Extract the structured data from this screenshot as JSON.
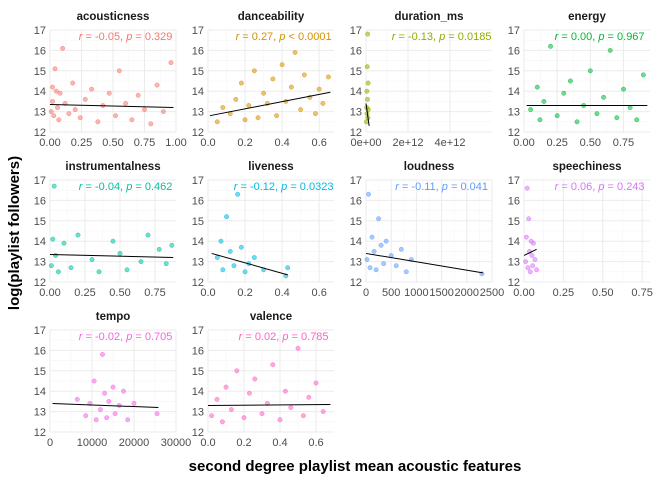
{
  "figure": {
    "xlabel": "second degree playlist mean acoustic features",
    "ylabel": "log(playlist followers)"
  },
  "chart_data": [
    {
      "type": "scatter",
      "title": "acousticness",
      "color": "#F8766D",
      "annotation": {
        "r": "-0.05",
        "p": "0.329"
      },
      "xlim": [
        0,
        1
      ],
      "xticks": [
        "0.00",
        "0.25",
        "0.50",
        "0.75",
        "1.00"
      ],
      "xtick_values": [
        0,
        0.25,
        0.5,
        0.75,
        1.0
      ],
      "ylim": [
        12,
        17
      ],
      "yticks": [
        "12",
        "13",
        "14",
        "15",
        "16",
        "17"
      ],
      "fit": {
        "x": [
          0,
          0.98
        ],
        "y": [
          13.35,
          13.2
        ]
      },
      "points": [
        [
          0.01,
          13.0
        ],
        [
          0.02,
          14.2
        ],
        [
          0.02,
          13.5
        ],
        [
          0.03,
          12.8
        ],
        [
          0.04,
          15.1
        ],
        [
          0.05,
          14.0
        ],
        [
          0.06,
          13.2
        ],
        [
          0.07,
          12.6
        ],
        [
          0.08,
          13.9
        ],
        [
          0.1,
          16.1
        ],
        [
          0.12,
          13.4
        ],
        [
          0.15,
          12.9
        ],
        [
          0.18,
          14.4
        ],
        [
          0.2,
          13.1
        ],
        [
          0.24,
          12.7
        ],
        [
          0.28,
          13.6
        ],
        [
          0.33,
          14.1
        ],
        [
          0.38,
          12.5
        ],
        [
          0.42,
          13.3
        ],
        [
          0.47,
          13.9
        ],
        [
          0.52,
          12.8
        ],
        [
          0.55,
          15.0
        ],
        [
          0.6,
          13.4
        ],
        [
          0.65,
          12.6
        ],
        [
          0.7,
          13.8
        ],
        [
          0.75,
          13.1
        ],
        [
          0.8,
          12.4
        ],
        [
          0.85,
          14.3
        ],
        [
          0.9,
          13.0
        ],
        [
          0.96,
          15.4
        ]
      ]
    },
    {
      "type": "scatter",
      "title": "danceability",
      "color": "#D39200",
      "annotation": {
        "r": "0.27",
        "p": "< 0.0001"
      },
      "xlim": [
        0,
        0.68
      ],
      "xticks": [
        "0.0",
        "0.2",
        "0.4",
        "0.6"
      ],
      "xtick_values": [
        0,
        0.2,
        0.4,
        0.6
      ],
      "ylim": [
        12,
        17
      ],
      "yticks": [
        "12",
        "13",
        "14",
        "15",
        "16",
        "17"
      ],
      "fit": {
        "x": [
          0.01,
          0.66
        ],
        "y": [
          12.8,
          13.95
        ]
      },
      "points": [
        [
          0.05,
          12.5
        ],
        [
          0.08,
          13.2
        ],
        [
          0.12,
          12.9
        ],
        [
          0.15,
          13.6
        ],
        [
          0.18,
          14.4
        ],
        [
          0.2,
          12.6
        ],
        [
          0.22,
          13.3
        ],
        [
          0.25,
          15.0
        ],
        [
          0.27,
          12.7
        ],
        [
          0.3,
          13.9
        ],
        [
          0.32,
          13.4
        ],
        [
          0.35,
          14.6
        ],
        [
          0.37,
          12.8
        ],
        [
          0.4,
          15.3
        ],
        [
          0.42,
          13.5
        ],
        [
          0.45,
          14.2
        ],
        [
          0.47,
          15.9
        ],
        [
          0.5,
          13.1
        ],
        [
          0.52,
          14.8
        ],
        [
          0.55,
          13.7
        ],
        [
          0.58,
          12.9
        ],
        [
          0.6,
          14.1
        ],
        [
          0.62,
          13.4
        ],
        [
          0.65,
          14.7
        ]
      ]
    },
    {
      "type": "scatter",
      "title": "duration_ms",
      "color": "#93AA00",
      "annotation": {
        "r": "-0.13",
        "p": "0.0185"
      },
      "xlim": [
        0,
        6000000000000
      ],
      "xticks": [
        "0e+00",
        "2e+12",
        "4e+12"
      ],
      "xtick_values": [
        0,
        2000000000000,
        4000000000000
      ],
      "ylim": [
        12,
        17
      ],
      "yticks": [
        "12",
        "13",
        "14",
        "15",
        "16",
        "17"
      ],
      "fit": {
        "x": [
          0,
          150000000000
        ],
        "y": [
          13.4,
          12.3
        ]
      },
      "points": [
        [
          20000000000,
          12.5
        ],
        [
          30000000000,
          13.2
        ],
        [
          40000000000,
          14.0
        ],
        [
          50000000000,
          12.9
        ],
        [
          60000000000,
          15.2
        ],
        [
          70000000000,
          13.6
        ],
        [
          80000000000,
          16.8
        ],
        [
          90000000000,
          12.7
        ],
        [
          100000000000,
          14.4
        ],
        [
          110000000000,
          13.1
        ]
      ]
    },
    {
      "type": "scatter",
      "title": "energy",
      "color": "#00BA38",
      "annotation": {
        "r": "0.00",
        "p": "0.967"
      },
      "xlim": [
        0,
        0.95
      ],
      "xticks": [
        "0.00",
        "0.25",
        "0.50",
        "0.75"
      ],
      "xtick_values": [
        0,
        0.25,
        0.5,
        0.75
      ],
      "ylim": [
        12,
        17
      ],
      "yticks": [
        "12",
        "13",
        "14",
        "15",
        "16",
        "17"
      ],
      "fit": {
        "x": [
          0.02,
          0.93
        ],
        "y": [
          13.3,
          13.3
        ]
      },
      "points": [
        [
          0.05,
          13.1
        ],
        [
          0.1,
          14.2
        ],
        [
          0.12,
          12.6
        ],
        [
          0.15,
          13.5
        ],
        [
          0.2,
          16.2
        ],
        [
          0.25,
          12.8
        ],
        [
          0.3,
          13.9
        ],
        [
          0.35,
          14.5
        ],
        [
          0.4,
          12.5
        ],
        [
          0.45,
          13.3
        ],
        [
          0.5,
          15.0
        ],
        [
          0.55,
          12.9
        ],
        [
          0.6,
          13.7
        ],
        [
          0.65,
          16.0
        ],
        [
          0.7,
          12.7
        ],
        [
          0.75,
          14.1
        ],
        [
          0.8,
          13.2
        ],
        [
          0.85,
          12.6
        ],
        [
          0.9,
          14.8
        ]
      ]
    },
    {
      "type": "scatter",
      "title": "instrumentalness",
      "color": "#00C19F",
      "annotation": {
        "r": "-0.04",
        "p": "0.462"
      },
      "xlim": [
        0,
        0.9
      ],
      "xticks": [
        "0.00",
        "0.25",
        "0.50",
        "0.75"
      ],
      "xtick_values": [
        0,
        0.25,
        0.5,
        0.75
      ],
      "ylim": [
        12,
        17
      ],
      "yticks": [
        "12",
        "13",
        "14",
        "15",
        "16",
        "17"
      ],
      "fit": {
        "x": [
          0,
          0.88
        ],
        "y": [
          13.35,
          13.2
        ]
      },
      "points": [
        [
          0.01,
          12.8
        ],
        [
          0.02,
          14.1
        ],
        [
          0.03,
          16.7
        ],
        [
          0.04,
          13.3
        ],
        [
          0.06,
          12.5
        ],
        [
          0.1,
          13.9
        ],
        [
          0.15,
          12.7
        ],
        [
          0.2,
          14.3
        ],
        [
          0.3,
          13.1
        ],
        [
          0.35,
          12.5
        ],
        [
          0.45,
          14.0
        ],
        [
          0.5,
          13.4
        ],
        [
          0.55,
          12.6
        ],
        [
          0.65,
          13.0
        ],
        [
          0.7,
          14.3
        ],
        [
          0.78,
          13.6
        ],
        [
          0.83,
          12.9
        ],
        [
          0.87,
          13.8
        ]
      ]
    },
    {
      "type": "scatter",
      "title": "liveness",
      "color": "#00B9E3",
      "annotation": {
        "r": "-0.12",
        "p": "0.0323"
      },
      "xlim": [
        0,
        0.68
      ],
      "xticks": [
        "0.0",
        "0.2",
        "0.4",
        "0.6"
      ],
      "xtick_values": [
        0,
        0.2,
        0.4,
        0.6
      ],
      "ylim": [
        12,
        17
      ],
      "yticks": [
        "12",
        "13",
        "14",
        "15",
        "16",
        "17"
      ],
      "fit": {
        "x": [
          0.02,
          0.43
        ],
        "y": [
          13.4,
          12.35
        ]
      },
      "points": [
        [
          0.05,
          13.2
        ],
        [
          0.07,
          14.0
        ],
        [
          0.08,
          12.6
        ],
        [
          0.1,
          15.2
        ],
        [
          0.12,
          13.5
        ],
        [
          0.14,
          12.8
        ],
        [
          0.16,
          16.3
        ],
        [
          0.18,
          13.7
        ],
        [
          0.2,
          12.5
        ],
        [
          0.22,
          12.9
        ],
        [
          0.25,
          13.2
        ],
        [
          0.3,
          12.6
        ],
        [
          0.42,
          12.3
        ],
        [
          0.43,
          12.7
        ]
      ]
    },
    {
      "type": "scatter",
      "title": "loudness",
      "color": "#619CFF",
      "annotation": {
        "r": "-0.11",
        "p": "0.041"
      },
      "xlim": [
        0,
        2500
      ],
      "xticks": [
        "0",
        "500",
        "1000",
        "1500",
        "2000",
        "2500"
      ],
      "xtick_values": [
        0,
        500,
        1000,
        1500,
        2000,
        2500
      ],
      "ylim": [
        12,
        17
      ],
      "yticks": [
        "12",
        "13",
        "14",
        "15",
        "16",
        "17"
      ],
      "fit": {
        "x": [
          0,
          2320
        ],
        "y": [
          13.4,
          12.45
        ]
      },
      "points": [
        [
          20,
          13.1
        ],
        [
          50,
          16.3
        ],
        [
          80,
          12.7
        ],
        [
          120,
          14.2
        ],
        [
          160,
          13.5
        ],
        [
          200,
          12.6
        ],
        [
          250,
          15.1
        ],
        [
          300,
          13.8
        ],
        [
          350,
          12.9
        ],
        [
          400,
          14.0
        ],
        [
          500,
          13.3
        ],
        [
          600,
          12.8
        ],
        [
          700,
          13.6
        ],
        [
          800,
          12.5
        ],
        [
          900,
          13.1
        ],
        [
          2300,
          12.4
        ]
      ]
    },
    {
      "type": "scatter",
      "title": "speechiness",
      "color": "#DB72FB",
      "annotation": {
        "r": "0.06",
        "p": "0.243"
      },
      "xlim": [
        0,
        0.8
      ],
      "xticks": [
        "0.00",
        "0.25",
        "0.50",
        "0.75"
      ],
      "xtick_values": [
        0,
        0.25,
        0.5,
        0.75
      ],
      "ylim": [
        12,
        17
      ],
      "yticks": [
        "12",
        "13",
        "14",
        "15",
        "16",
        "17"
      ],
      "fit": {
        "x": [
          0,
          0.08
        ],
        "y": [
          13.3,
          13.6
        ]
      },
      "points": [
        [
          0.01,
          13.0
        ],
        [
          0.015,
          14.2
        ],
        [
          0.02,
          16.6
        ],
        [
          0.025,
          12.7
        ],
        [
          0.03,
          15.1
        ],
        [
          0.035,
          13.5
        ],
        [
          0.04,
          12.5
        ],
        [
          0.045,
          14.0
        ],
        [
          0.05,
          13.3
        ],
        [
          0.055,
          12.8
        ],
        [
          0.06,
          13.9
        ],
        [
          0.07,
          13.1
        ],
        [
          0.08,
          12.6
        ]
      ]
    },
    {
      "type": "scatter",
      "title": "tempo",
      "color": "#F564E3",
      "annotation": {
        "r": "-0.02",
        "p": "0.705"
      },
      "xlim": [
        0,
        30000
      ],
      "xticks": [
        "0",
        "10000",
        "20000",
        "30000"
      ],
      "xtick_values": [
        0,
        10000,
        20000,
        30000
      ],
      "ylim": [
        12,
        17
      ],
      "yticks": [
        "12",
        "13",
        "14",
        "15",
        "16",
        "17"
      ],
      "fit": {
        "x": [
          600,
          25800
        ],
        "y": [
          13.4,
          13.2
        ]
      },
      "points": [
        [
          6500,
          13.6
        ],
        [
          8500,
          12.8
        ],
        [
          9500,
          13.4
        ],
        [
          10500,
          14.5
        ],
        [
          11000,
          12.6
        ],
        [
          12000,
          13.1
        ],
        [
          12500,
          15.8
        ],
        [
          13000,
          13.9
        ],
        [
          13500,
          12.7
        ],
        [
          14000,
          13.5
        ],
        [
          15000,
          14.2
        ],
        [
          15500,
          12.9
        ],
        [
          16500,
          13.3
        ],
        [
          17500,
          14.0
        ],
        [
          18500,
          12.6
        ],
        [
          20000,
          13.4
        ],
        [
          25500,
          12.9
        ]
      ]
    },
    {
      "type": "scatter",
      "title": "valence",
      "color": "#FF61C3",
      "annotation": {
        "r": "0.02",
        "p": "0.785"
      },
      "xlim": [
        0,
        0.7
      ],
      "xticks": [
        "0.0",
        "0.2",
        "0.4",
        "0.6"
      ],
      "xtick_values": [
        0,
        0.2,
        0.4,
        0.6
      ],
      "ylim": [
        12,
        17
      ],
      "yticks": [
        "12",
        "13",
        "14",
        "15",
        "16",
        "17"
      ],
      "fit": {
        "x": [
          0,
          0.68
        ],
        "y": [
          13.3,
          13.35
        ]
      },
      "points": [
        [
          0.02,
          12.8
        ],
        [
          0.05,
          13.6
        ],
        [
          0.08,
          12.5
        ],
        [
          0.1,
          14.2
        ],
        [
          0.13,
          13.1
        ],
        [
          0.16,
          15.0
        ],
        [
          0.2,
          12.7
        ],
        [
          0.23,
          13.9
        ],
        [
          0.26,
          14.6
        ],
        [
          0.3,
          12.9
        ],
        [
          0.33,
          13.4
        ],
        [
          0.36,
          15.3
        ],
        [
          0.4,
          12.6
        ],
        [
          0.43,
          14.0
        ],
        [
          0.46,
          13.2
        ],
        [
          0.5,
          16.1
        ],
        [
          0.53,
          12.8
        ],
        [
          0.56,
          13.7
        ],
        [
          0.6,
          14.4
        ],
        [
          0.64,
          13.0
        ]
      ]
    }
  ]
}
